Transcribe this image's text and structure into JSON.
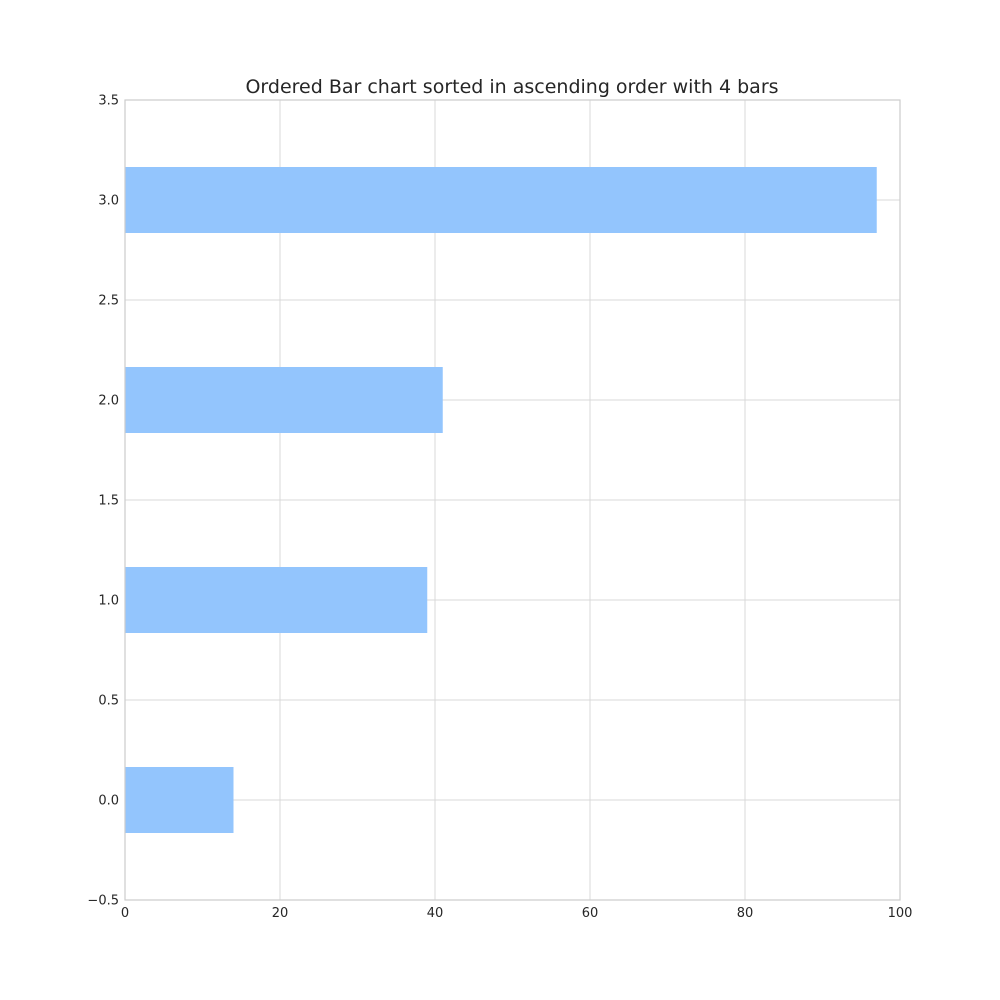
{
  "chart_data": {
    "type": "bar",
    "orientation": "horizontal",
    "title": "Ordered Bar chart sorted in ascending order with 4 bars",
    "xlabel": "",
    "ylabel": "",
    "categories": [
      0,
      1,
      2,
      3
    ],
    "values": [
      14,
      39,
      41,
      97
    ],
    "bar_width": 0.33,
    "xlim": [
      0,
      100
    ],
    "ylim": [
      -0.5,
      3.5
    ],
    "xticks": [
      0,
      20,
      40,
      60,
      80,
      100
    ],
    "xtick_labels": [
      "0",
      "20",
      "40",
      "60",
      "80",
      "100"
    ],
    "yticks": [
      -0.5,
      0.0,
      0.5,
      1.0,
      1.5,
      2.0,
      2.5,
      3.0,
      3.5
    ],
    "ytick_labels": [
      "−0.5",
      "0.0",
      "0.5",
      "1.0",
      "1.5",
      "2.0",
      "2.5",
      "3.0",
      "3.5"
    ],
    "grid": true,
    "legend": "none",
    "bar_color": "#93c5fd",
    "grid_color": "#d9d9d9",
    "frame_color": "#cccccc"
  }
}
